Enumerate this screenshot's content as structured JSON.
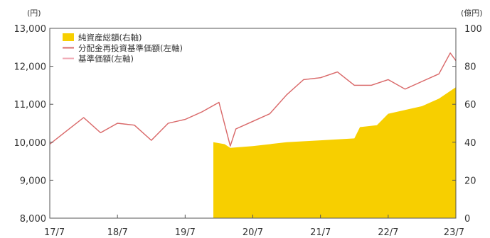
{
  "chart_data": {
    "type": "line",
    "left_axis": {
      "unit": "(円)",
      "ticks": [
        "13,000",
        "12,000",
        "11,000",
        "10,000",
        "9,000",
        "8,000"
      ],
      "range": [
        8000,
        13000
      ]
    },
    "right_axis": {
      "unit": "(億円)",
      "ticks": [
        "100",
        "80",
        "60",
        "40",
        "20",
        "0"
      ],
      "range": [
        0,
        100
      ]
    },
    "x_ticks": [
      "17/7",
      "18/7",
      "19/7",
      "20/7",
      "21/7",
      "22/7",
      "23/7"
    ],
    "legend": [
      {
        "label": "純資産総額(右軸)",
        "color": "#f7cf00"
      },
      {
        "label": "分配金再投資基準価額(左軸)",
        "color": "#d96a6a"
      },
      {
        "label": "基準価額(左軸)",
        "color": "#f0a8b4"
      }
    ],
    "series": [
      {
        "name": "分配金再投資基準価額(左軸)",
        "axis": "left",
        "x": [
          "17/7",
          "17/10",
          "18/1",
          "18/4",
          "18/7",
          "18/10",
          "19/1",
          "19/4",
          "19/7",
          "19/10",
          "20/1",
          "20/3",
          "20/4",
          "20/7",
          "20/10",
          "21/1",
          "21/4",
          "21/7",
          "21/10",
          "22/1",
          "22/4",
          "22/7",
          "22/10",
          "23/1",
          "23/4",
          "23/6",
          "23/7"
        ],
        "values": [
          9950,
          10300,
          10650,
          10250,
          10500,
          10450,
          10050,
          10500,
          10600,
          10800,
          11050,
          9900,
          10350,
          10550,
          10750,
          11250,
          11650,
          11700,
          11850,
          11500,
          11500,
          11650,
          11400,
          11600,
          11800,
          12350,
          12150
        ]
      },
      {
        "name": "基準価額(左軸)",
        "axis": "left",
        "x": [
          "17/7",
          "17/10",
          "18/1",
          "18/4",
          "18/7",
          "18/10",
          "19/1",
          "19/4",
          "19/7",
          "19/10",
          "20/1",
          "20/3",
          "20/4",
          "20/7",
          "20/10",
          "21/1",
          "21/4",
          "21/7",
          "21/10",
          "22/1",
          "22/4",
          "22/7",
          "22/10",
          "23/1",
          "23/4",
          "23/6",
          "23/7"
        ],
        "values": [
          9950,
          10300,
          10650,
          10250,
          10500,
          10450,
          10050,
          10500,
          10600,
          10800,
          11050,
          9900,
          10350,
          10550,
          10750,
          11250,
          11650,
          11700,
          11850,
          11500,
          11500,
          11650,
          11400,
          11600,
          11800,
          12350,
          12150
        ]
      },
      {
        "name": "純資産総額(右軸)",
        "axis": "right",
        "x": [
          "19/12",
          "20/2",
          "20/3",
          "20/7",
          "21/1",
          "21/7",
          "22/1",
          "22/2",
          "22/5",
          "22/7",
          "22/10",
          "23/1",
          "23/4",
          "23/7"
        ],
        "values": [
          40,
          39,
          37,
          38,
          40,
          41,
          42,
          48,
          49,
          55,
          57,
          59,
          63,
          69
        ]
      }
    ]
  }
}
